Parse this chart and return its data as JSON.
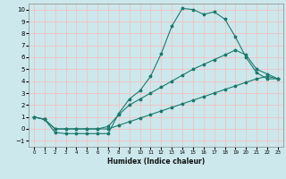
{
  "title": "",
  "xlabel": "Humidex (Indice chaleur)",
  "ylabel": "",
  "bg_color": "#cce8ec",
  "grid_color": "#f5c0c0",
  "line_color": "#1a7a6e",
  "xlim": [
    -0.5,
    23.5
  ],
  "ylim": [
    -1.5,
    10.5
  ],
  "xticks": [
    0,
    1,
    2,
    3,
    4,
    5,
    6,
    7,
    8,
    9,
    10,
    11,
    12,
    13,
    14,
    15,
    16,
    17,
    18,
    19,
    20,
    21,
    22,
    23
  ],
  "yticks": [
    -1,
    0,
    1,
    2,
    3,
    4,
    5,
    6,
    7,
    8,
    9,
    10
  ],
  "line1_x": [
    0,
    1,
    2,
    3,
    4,
    5,
    6,
    7,
    8,
    9,
    10,
    11,
    12,
    13,
    14,
    15,
    16,
    17,
    18,
    19,
    20,
    21,
    22,
    23
  ],
  "line1_y": [
    1,
    0.8,
    -0.3,
    -0.4,
    -0.4,
    -0.4,
    -0.4,
    -0.4,
    1.3,
    2.5,
    3.2,
    4.4,
    6.3,
    8.6,
    10.1,
    10.0,
    9.6,
    9.8,
    9.2,
    7.7,
    6.0,
    4.7,
    4.2,
    4.2
  ],
  "line2_x": [
    0,
    1,
    2,
    3,
    4,
    5,
    6,
    7,
    8,
    9,
    10,
    11,
    12,
    13,
    14,
    15,
    16,
    17,
    18,
    19,
    20,
    21,
    22,
    23
  ],
  "line2_y": [
    1,
    0.8,
    0.0,
    0.0,
    0.0,
    0.0,
    0.0,
    0.2,
    1.2,
    2.0,
    2.5,
    3.0,
    3.5,
    4.0,
    4.5,
    5.0,
    5.4,
    5.8,
    6.2,
    6.6,
    6.2,
    5.0,
    4.6,
    4.2
  ],
  "line3_x": [
    0,
    1,
    2,
    3,
    4,
    5,
    6,
    7,
    8,
    9,
    10,
    11,
    12,
    13,
    14,
    15,
    16,
    17,
    18,
    19,
    20,
    21,
    22,
    23
  ],
  "line3_y": [
    1,
    0.8,
    0.0,
    0.0,
    0.0,
    0.0,
    0.0,
    0.0,
    0.3,
    0.6,
    0.9,
    1.2,
    1.5,
    1.8,
    2.1,
    2.4,
    2.7,
    3.0,
    3.3,
    3.6,
    3.9,
    4.2,
    4.4,
    4.2
  ]
}
